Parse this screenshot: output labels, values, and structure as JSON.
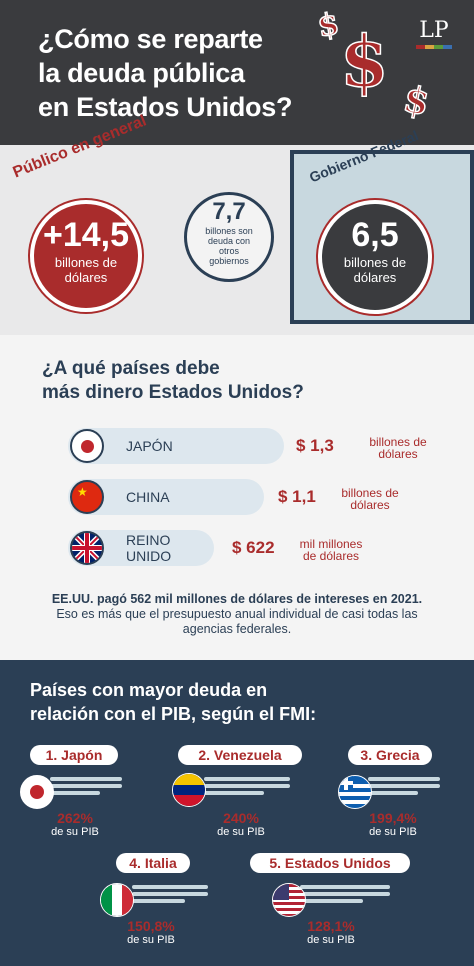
{
  "header": {
    "title_line1": "¿Cómo se reparte",
    "title_line2": "la deuda pública",
    "title_line3": "en Estados Unidos?",
    "logo": "LP",
    "dollar_sign": "$"
  },
  "general": {
    "label": "Público en general",
    "amount": "+14,5",
    "unit_line1": "billones de",
    "unit_line2": "dólares"
  },
  "other": {
    "amount": "7,7",
    "text_line1": "billones son",
    "text_line2": "deuda con",
    "text_line3": "otros",
    "text_line4": "gobiernos"
  },
  "federal": {
    "label": "Gobierno Federal",
    "amount": "6,5",
    "unit_line1": "billones de",
    "unit_line2": "dólares"
  },
  "countries_section": {
    "title_line1": "¿A qué países debe",
    "title_line2": "más dinero Estados Unidos?",
    "items": [
      {
        "name": "JAPÓN",
        "amount": "$ 1,3",
        "unit_line1": "billones de",
        "unit_line2": "dólares"
      },
      {
        "name": "CHINA",
        "amount": "$ 1,1",
        "unit_line1": "billones de",
        "unit_line2": "dólares"
      },
      {
        "name_line1": "REINO",
        "name_line2": "UNIDO",
        "amount": "$ 622",
        "unit_line1": "mil millones",
        "unit_line2": "de dólares"
      }
    ],
    "note_bold": "EE.UU. pagó 562 mil millones de dólares de intereses en 2021.",
    "note_rest": " Eso es más que el presupuesto anual individual de casi todas las agencias federales."
  },
  "imf_section": {
    "title_line1": "Países con mayor deuda en",
    "title_line2": "relación con el PIB, según el FMI:",
    "pib_label": "de su PIB",
    "ranks": [
      {
        "label": "1. Japón",
        "pct": "262%"
      },
      {
        "label": "2. Venezuela",
        "pct": "240%"
      },
      {
        "label": "3. Grecia",
        "pct": "199,4%"
      },
      {
        "label": "4. Italia",
        "pct": "150,8%"
      },
      {
        "label": "5. Estados Unidos",
        "pct": "128,1%"
      }
    ]
  },
  "colors": {
    "red": "#a92c2c",
    "navy": "#2b3f55",
    "dark": "#3a3b3e",
    "light_blue": "#c8d8df"
  }
}
